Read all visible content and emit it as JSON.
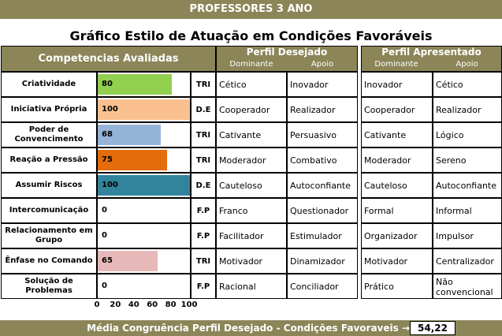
{
  "banner": "PROFESSORES 3 ANO",
  "title": "Gráfico Estilo de Atuação em Condições Favoráveis",
  "headers": {
    "competencias": "Competencias Avaliadas",
    "perfil_desejado": "Perfil Desejado",
    "perfil_apresentado": "Perfil Apresentado",
    "dominante": "Dominante",
    "apoio": "Apoio"
  },
  "chart_data": {
    "type": "bar",
    "orientation": "horizontal",
    "categories": [
      "Criatividade",
      "Iniciativa Própria",
      "Poder de Convencimento",
      "Reação a Pressão",
      "Assumir Riscos",
      "Intercomunicação",
      "Relacionamento em Grupo",
      "Ênfase no Comando",
      "Solução de Problemas"
    ],
    "values": [
      80,
      100,
      68,
      75,
      100,
      0,
      0,
      65,
      0
    ],
    "bar_colors": [
      "#92d050",
      "#fac090",
      "#95b3d7",
      "#e46c0a",
      "#31849b",
      "#ffffff",
      "#ffffff",
      "#e6b9b8",
      "#ffffff"
    ],
    "xlim": [
      0,
      100
    ],
    "xticks": [
      "0",
      "20",
      "40",
      "60",
      "80",
      "100"
    ]
  },
  "rows": [
    {
      "code": "TRI",
      "d_dom": "Cético",
      "d_apo": "Inovador",
      "a_dom": "Inovador",
      "a_apo": "Cético"
    },
    {
      "code": "D.E",
      "d_dom": "Cooperador",
      "d_apo": "Realizador",
      "a_dom": "Cooperador",
      "a_apo": "Realizador"
    },
    {
      "code": "TRI",
      "d_dom": "Cativante",
      "d_apo": "Persuasivo",
      "a_dom": "Cativante",
      "a_apo": "Lógico"
    },
    {
      "code": "TRI",
      "d_dom": "Moderador",
      "d_apo": "Combativo",
      "a_dom": "Moderador",
      "a_apo": "Sereno"
    },
    {
      "code": "D.E",
      "d_dom": "Cauteloso",
      "d_apo": "Autoconfiante",
      "a_dom": "Cauteloso",
      "a_apo": "Autoconfiante"
    },
    {
      "code": "F.P",
      "d_dom": "Franco",
      "d_apo": "Questionador",
      "a_dom": "Formal",
      "a_apo": "Informal"
    },
    {
      "code": "F.P",
      "d_dom": "Facilitador",
      "d_apo": "Estimulador",
      "a_dom": "Organizador",
      "a_apo": "Impulsor"
    },
    {
      "code": "TRI",
      "d_dom": "Motivador",
      "d_apo": "Dinamizador",
      "a_dom": "Motivador",
      "a_apo": "Centralizador"
    },
    {
      "code": "F.P",
      "d_dom": "Racional",
      "d_apo": "Conciliador",
      "a_dom": "Prático",
      "a_apo": "Não convencional"
    }
  ],
  "footer": {
    "label": "Média Congruência Perfil Desejado - Condições Favoraveis →",
    "value": "54,22"
  }
}
